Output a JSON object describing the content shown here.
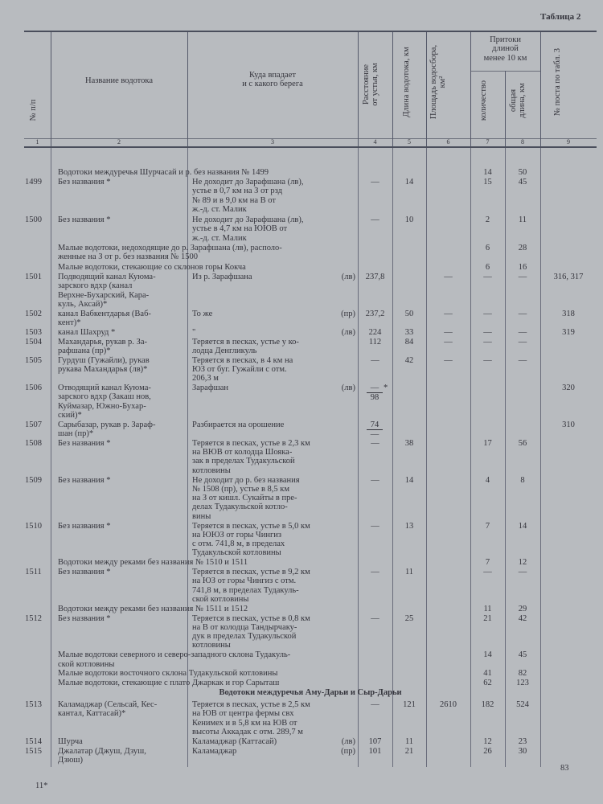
{
  "page": {
    "table_label": "Таблица 2",
    "page_number": "83",
    "signature_mark": "11*"
  },
  "header": {
    "col1": "№ п/п",
    "col2": "Название водотока",
    "col3": "Куда впадает\nи с какого берега",
    "col4": "Расстояние\nот устья, км",
    "col5": "Длина водотока, км",
    "col6": "Площадь водосбора,\nкм²",
    "col78_group": "Притоки\nдлиной\nменее 10 км",
    "col7": "количество",
    "col8": "общая\nдлина, км",
    "col9": "№ поста по табл. 3",
    "numbers": [
      "1",
      "2",
      "3",
      "4",
      "5",
      "6",
      "7",
      "8",
      "9"
    ]
  },
  "rows": [
    {
      "type": "group",
      "text": "Водотоки междуречья Шурчасай и р. без названия № 1499",
      "c7": "14",
      "c8": "50"
    },
    {
      "type": "entry",
      "no": "1499",
      "name": "Без названия *",
      "where": "Не доходит до Зарафшана (лв),\nустье в 0,7 км на З от рзд\n№ 89 и в 9,0 км на В от\nж.-д. ст. Малик",
      "c4": "—",
      "c5": "14",
      "c7": "15",
      "c8": "45"
    },
    {
      "type": "entry",
      "no": "1500",
      "name": "Без названия *",
      "where": "Не доходит до Зарафшана (лв),\nустье в 4,7 км на ЮЮВ от\nж.-д. ст. Малик",
      "c4": "—",
      "c5": "10",
      "c7": "2",
      "c8": "11"
    },
    {
      "type": "group",
      "text": "Малые водотоки, недоходящие до р. Зарафшана (лв), располо-\nженные на З от р. без названия № 1500",
      "c7": "6",
      "c8": "28"
    },
    {
      "type": "group",
      "text": "Малые водотоки, стекающие со склонов горы Кокча",
      "c7": "6",
      "c8": "16"
    },
    {
      "type": "entry",
      "no": "1501",
      "name": "Подводящий канал Куюма-\nзарского вдхр (канал\nВерхне-Бухарский, Кара-\nкуль, Аксай)*",
      "where": "Из р. Зарафшана",
      "bank": "(лв)",
      "c4": "237,8",
      "c6": "—",
      "c7": "—",
      "c8": "—",
      "c9": "316, 317"
    },
    {
      "type": "entry",
      "no": "1502",
      "name": "канал Вабкентдарья (Ваб-\nкент)*",
      "where": "То же",
      "bank": "(пр)",
      "c4": "237,2",
      "c5": "50",
      "c6": "—",
      "c7": "—",
      "c8": "—",
      "c9": "318"
    },
    {
      "type": "entry",
      "no": "1503",
      "name": "канал Шахруд *",
      "where": "\"",
      "bank": "(лв)",
      "c4": "224",
      "c5": "33",
      "c6": "—",
      "c7": "—",
      "c8": "—",
      "c9": "319"
    },
    {
      "type": "entry",
      "no": "1504",
      "name": "Махандарья, рукав р. За-\nрафшана (пр)*",
      "where": "Теряется в песках, устье у ко-\nлодца Денгликуль",
      "c4": "112",
      "c5": "84",
      "c6": "—",
      "c7": "—",
      "c8": "—"
    },
    {
      "type": "entry",
      "no": "1505",
      "name": "Гурдуш (Гужайли), рукав\nрукава Махандарья (лв)*",
      "where": "Теряется в песках, в 4 км на\nЮЗ от буг. Гужайли с отм.\n206,3 м",
      "c4": "—",
      "c5": "42",
      "c6": "—",
      "c7": "—",
      "c8": "—"
    },
    {
      "type": "entry",
      "no": "1506",
      "name": "Отводящий канал Куюма-\nзарского вдхр (Закаш нов,\nКуймазар, Южно-Бухар-\nский)*",
      "where": "Зарафшан",
      "bank": "(лв)",
      "c4_num": "—",
      "c4_den": "98",
      "c4_note": "*",
      "c9": "320"
    },
    {
      "type": "entry",
      "no": "1507",
      "name": "Сарыбазар, рукав р. Зараф-\nшан (пр)*",
      "where": "Разбирается на орошение",
      "c4_num": "74",
      "c4_den": "—",
      "c9": "310"
    },
    {
      "type": "entry",
      "no": "1508",
      "name": "Без названия *",
      "where": "Теряется в песках, устье в 2,3 км\nна ВЮВ от колодца Шояка-\nзак в пределах Тудакульской\nкотловины",
      "c4": "—",
      "c5": "38",
      "c7": "17",
      "c8": "56"
    },
    {
      "type": "entry",
      "no": "1509",
      "name": "Без названия *",
      "where": "Не доходит до р. без названия\n№ 1508 (пр), устье в 8,5 км\nна З от кишл. Сукайты в пре-\nделах Тудакульской котло-\nвины",
      "c4": "—",
      "c5": "14",
      "c7": "4",
      "c8": "8"
    },
    {
      "type": "entry",
      "no": "1510",
      "name": "Без названия *",
      "where": "Теряется в песках, устье в 5,0 км\nна ЮЮЗ от горы Чингиз\nс отм. 741,8 м, в пределах\nТудакульской котловины",
      "c4": "—",
      "c5": "13",
      "c7": "7",
      "c8": "14"
    },
    {
      "type": "group",
      "text": "Водотоки между реками без названия № 1510 и 1511",
      "c7": "7",
      "c8": "12"
    },
    {
      "type": "entry",
      "no": "1511",
      "name": "Без названия *",
      "where": "Теряется в песках, устье в 9,2 км\nна ЮЗ от горы Чингиз с отм.\n741,8 м, в пределах Тудакуль-\nской котловины",
      "c4": "—",
      "c5": "11",
      "c7": "—",
      "c8": "—"
    },
    {
      "type": "group",
      "text": "Водотоки между реками без названия № 1511 и 1512",
      "c7": "11",
      "c8": "29"
    },
    {
      "type": "entry",
      "no": "1512",
      "name": "Без названия *",
      "where": "Теряется в песках, устье в 0,8 км\nна В от колодца Тандырчаку-\nдук в пределах Тудакульской\nкотловины",
      "c4": "—",
      "c5": "25",
      "c7": "21",
      "c8": "42"
    },
    {
      "type": "group",
      "text": "Малые водотоки северного и северо-западного склона Тудакуль-\nской котловины",
      "c7": "14",
      "c8": "45"
    },
    {
      "type": "group",
      "text": "Малые водотоки восточного склона Тудакульской котловины",
      "c7": "41",
      "c8": "82"
    },
    {
      "type": "group",
      "text": "Малые водотоки, стекающие с плато Джаркак и гор Сарыташ",
      "c7": "62",
      "c8": "123"
    },
    {
      "type": "section",
      "text": "Водотоки междуречья Аму-Дарьи и Сыр-Дарьи"
    },
    {
      "type": "entry",
      "no": "1513",
      "name": "Каламаджар (Сельсай, Кес-\nкантал, Каттасай)*",
      "where": "Теряется в песках, устье в 2,5 км\nна ЮВ от центра фермы свх\nКенимех и в 5,8 км на ЮВ от\nвысоты Аккадак с отм. 289,7 м",
      "c4": "—",
      "c5": "121",
      "c6": "2610",
      "c7": "182",
      "c8": "524"
    },
    {
      "type": "entry",
      "no": "1514",
      "name": "Шурча",
      "where": "Каламаджар (Каттасай)",
      "bank": "(лв)",
      "c4": "107",
      "c5": "11",
      "c7": "12",
      "c8": "23"
    },
    {
      "type": "entry",
      "no": "1515",
      "name": "Джалатар (Джуш, Дзуш,\nДзюш)",
      "where": "Каламаджар",
      "bank": "(пр)",
      "c4": "101",
      "c5": "21",
      "c7": "26",
      "c8": "30"
    }
  ]
}
